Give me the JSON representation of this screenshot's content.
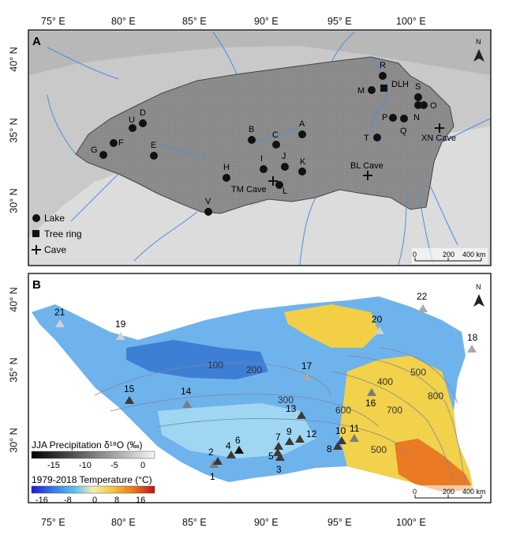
{
  "longitude_ticks": [
    "75° E",
    "80° E",
    "85° E",
    "90° E",
    "95° E",
    "100° E"
  ],
  "latitude_ticks_a": [
    "40° N",
    "35° N",
    "30° N"
  ],
  "latitude_ticks_b": [
    "40° N",
    "35° N",
    "30° N"
  ],
  "panel_a": {
    "label": "A",
    "north": "N",
    "lakes": [
      {
        "id": "R"
      },
      {
        "id": "M"
      },
      {
        "id": "S"
      },
      {
        "id": "O"
      },
      {
        "id": "P"
      },
      {
        "id": "N"
      },
      {
        "id": "Q"
      },
      {
        "id": "T"
      },
      {
        "id": "U"
      },
      {
        "id": "D"
      },
      {
        "id": "F"
      },
      {
        "id": "G"
      },
      {
        "id": "E"
      },
      {
        "id": "B"
      },
      {
        "id": "C"
      },
      {
        "id": "A"
      },
      {
        "id": "I"
      },
      {
        "id": "J"
      },
      {
        "id": "K"
      },
      {
        "id": "H"
      },
      {
        "id": "L"
      },
      {
        "id": "V"
      }
    ],
    "tree_ring_label": "DLH",
    "caves": [
      "XN Cave",
      "BL Cave",
      "TM Cave"
    ],
    "legend": {
      "lake": "Lake",
      "tree_ring": "Tree ring",
      "cave": "Cave"
    },
    "scalebar": {
      "zero": "0",
      "mid": "200",
      "end": "400 km"
    }
  },
  "panel_b": {
    "label": "B",
    "north": "N",
    "contours": [
      "100",
      "200",
      "300",
      "400",
      "500",
      "600",
      "700",
      "800",
      "500"
    ],
    "stations": [
      "1",
      "2",
      "3",
      "4",
      "5",
      "6",
      "7",
      "8",
      "9",
      "10",
      "11",
      "12",
      "13",
      "14",
      "15",
      "16",
      "17",
      "18",
      "19",
      "20",
      "21",
      "22"
    ],
    "precip_legend": {
      "title": "JJA Precipitation δ¹⁸O (‰)",
      "ticks": [
        "-15",
        "-10",
        "-5",
        "0"
      ]
    },
    "temp_legend": {
      "title": "1979-2018 Temperature (°C)",
      "ticks": [
        "-16",
        "-8",
        "0",
        "8",
        "16"
      ]
    },
    "scalebar": {
      "zero": "0",
      "mid": "200",
      "end": "400 km"
    }
  },
  "colors": {
    "lake": "#111111",
    "rivers": "#4a90e2",
    "plateau": "#8c8c8c",
    "station_dark": "#3a3a3a",
    "station_light": "#a9a9a9"
  }
}
